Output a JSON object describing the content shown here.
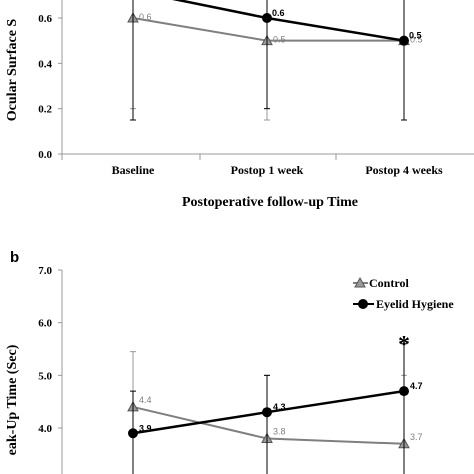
{
  "chart_data": [
    {
      "panel_label": "",
      "type": "line",
      "ylabel": "Ocular Surface S",
      "xlabel": "Postoperative follow-up Time",
      "categories": [
        "Baseline",
        "Postop 1 week",
        "Postop 4 weeks"
      ],
      "yticks": [
        "0.0",
        "0.2",
        "0.4",
        "0.6"
      ],
      "ylim": [
        0,
        0.68
      ],
      "series": [
        {
          "key": "control",
          "values": [
            0.6,
            0.5,
            0.5
          ],
          "labels": [
            "0.6",
            "0.5",
            "0.5"
          ],
          "err_low": [
            0.2,
            0.15,
            0.15
          ],
          "err_high": [
            0.75,
            0.75,
            0.75
          ],
          "color": "#7f7f7f",
          "marker": "triangle"
        },
        {
          "key": "eyelid",
          "values": [
            0.72,
            0.6,
            0.5
          ],
          "labels": [
            "",
            "0.6",
            "0.5"
          ],
          "err_low": [
            0.15,
            0.2,
            0.15
          ],
          "err_high": [
            0.9,
            0.9,
            0.9
          ],
          "color": "#000000",
          "marker": "circle"
        }
      ]
    },
    {
      "panel_label": "b",
      "type": "line",
      "ylabel": "eak-Up Time (Sec)",
      "xlabel": "",
      "categories": [
        "Baseline",
        "Postop 1 week",
        "Postop 4 weeks"
      ],
      "yticks": [
        "4.0",
        "5.0",
        "6.0",
        "7.0"
      ],
      "ylim": [
        3.3,
        7.0
      ],
      "legend": [
        "Control",
        "Eyelid Hygiene"
      ],
      "legend_position": "top-right",
      "annotation": "*",
      "series": [
        {
          "name": "Control",
          "key": "control",
          "values": [
            4.4,
            3.8,
            3.7
          ],
          "labels": [
            "4.4",
            "3.8",
            "3.7"
          ],
          "err_low": [
            3.0,
            3.0,
            3.0
          ],
          "err_high": [
            5.45,
            5.0,
            5.0
          ],
          "color": "#7f7f7f",
          "marker": "triangle"
        },
        {
          "name": "Eyelid Hygiene",
          "key": "eyelid",
          "values": [
            3.9,
            4.3,
            4.7
          ],
          "labels": [
            "3.9",
            "4.3",
            "4.7"
          ],
          "err_low": [
            3.0,
            3.0,
            3.0
          ],
          "err_high": [
            4.7,
            5.0,
            5.6
          ],
          "color": "#000000",
          "marker": "circle"
        }
      ]
    }
  ]
}
